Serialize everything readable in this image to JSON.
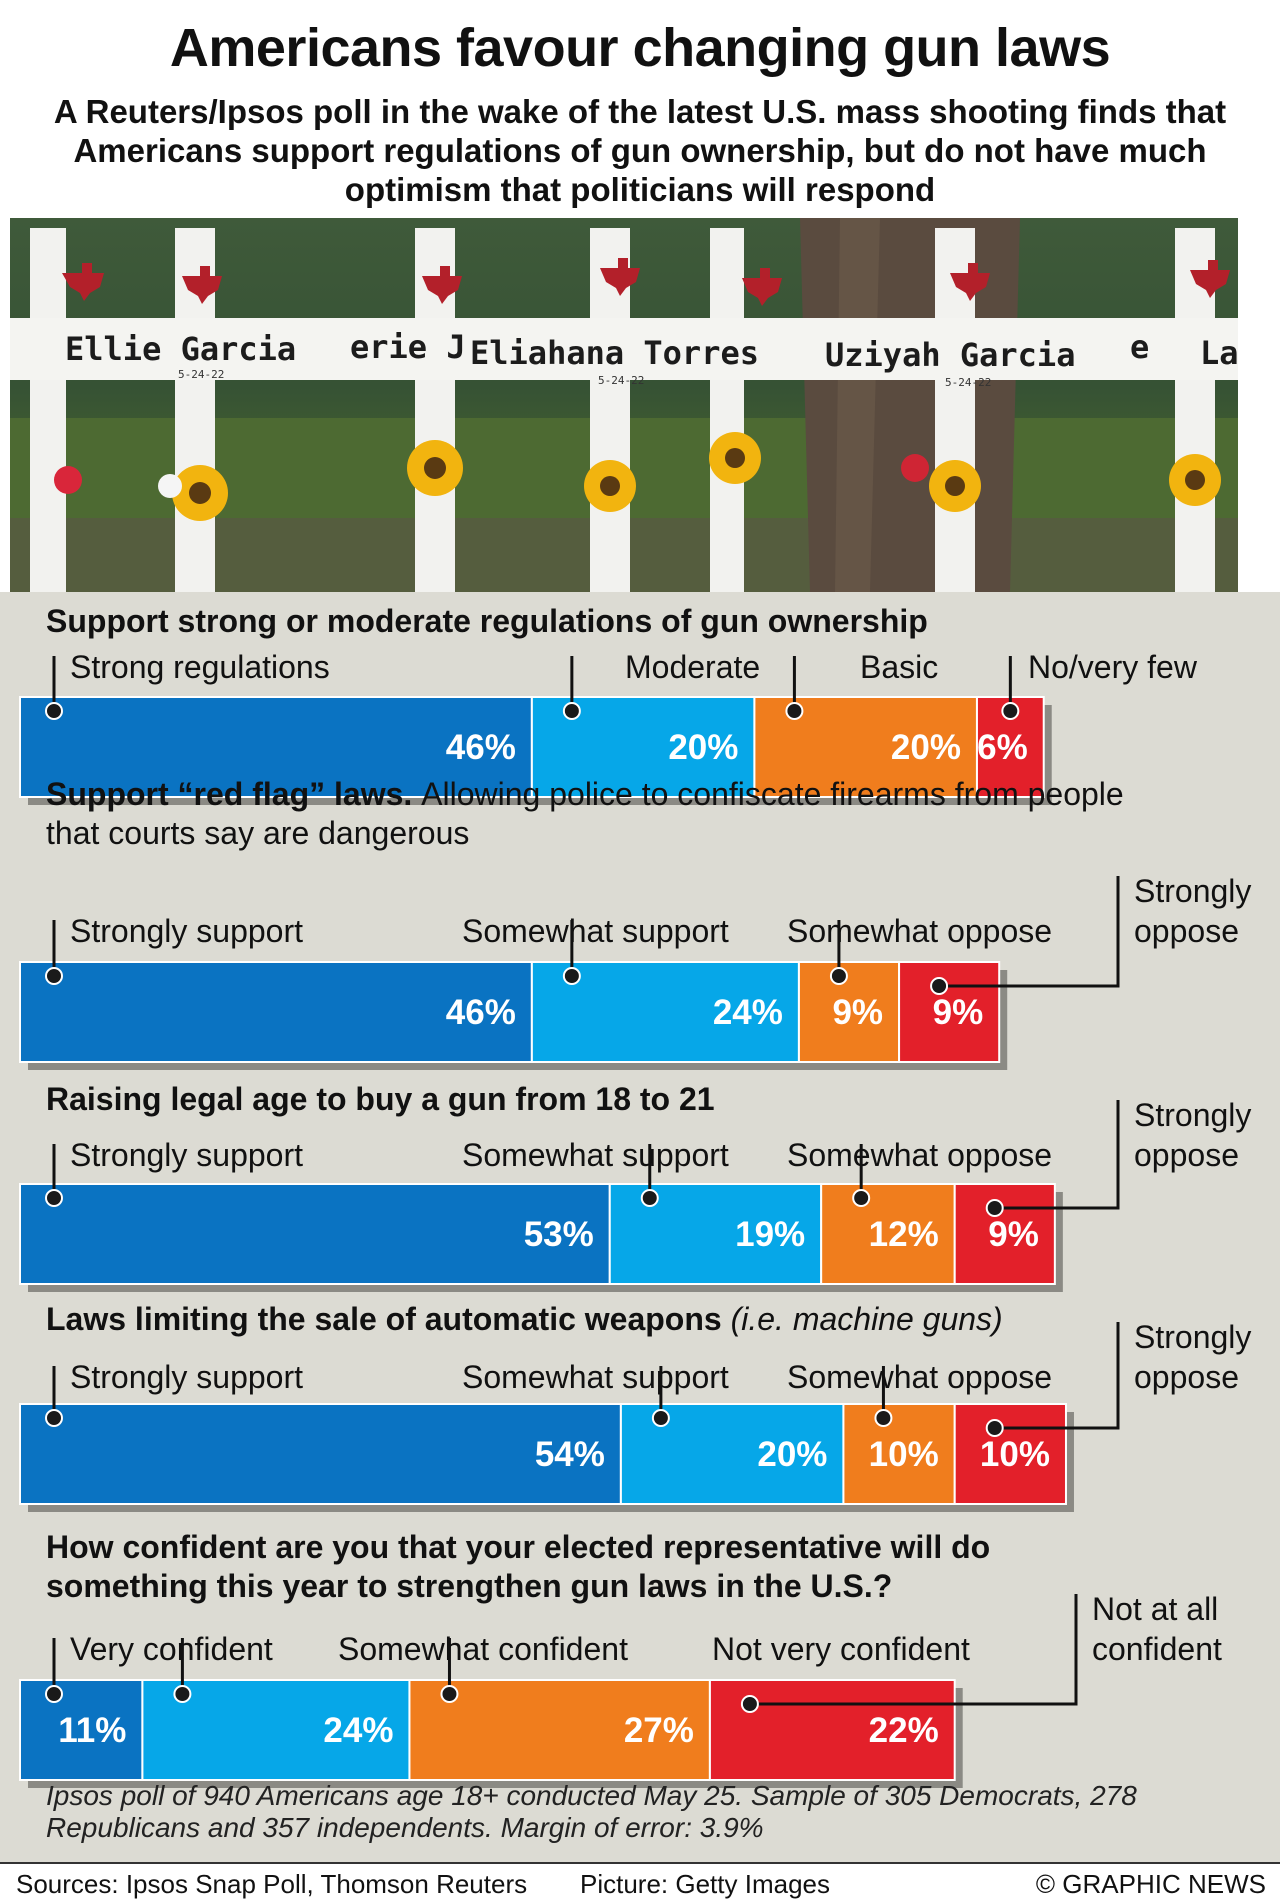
{
  "title": "Americans favour changing gun laws",
  "subtitle": "A Reuters/Ipsos poll in the wake of the latest U.S. mass shooting finds that Americans support regulations of gun ownership, but do not have much optimism that politicians will respond",
  "photo": {
    "names": [
      "Ellie Garcia",
      "erie J",
      "Eliahana Torres",
      "Uziyah Garcia",
      "e",
      "Lau"
    ],
    "date": "5-24-22"
  },
  "chart_data": [
    {
      "type": "bar",
      "stacked": true,
      "orientation": "horizontal",
      "title": "Support strong or moderate regulations of gun ownership",
      "title_extra": "",
      "title_extra_style": "",
      "categories": [
        "Strong regulations",
        "Moderate",
        "Basic",
        "No/very few"
      ],
      "values": [
        46,
        20,
        20,
        6
      ],
      "labels": [
        "46%",
        "20%",
        "20%",
        "6%"
      ],
      "colors": [
        "#0a73c2",
        "#06a7e8",
        "#f07d1d",
        "#e3202a"
      ]
    },
    {
      "type": "bar",
      "stacked": true,
      "orientation": "horizontal",
      "title": "Support “red flag” laws.",
      "title_extra": "Allowing police to confiscate firearms from people that courts say are dangerous",
      "title_extra_style": "plain",
      "categories": [
        "Strongly support",
        "Somewhat support",
        "Somewhat oppose",
        "Strongly oppose"
      ],
      "values": [
        46,
        24,
        9,
        9
      ],
      "labels": [
        "46%",
        "24%",
        "9%",
        "9%"
      ],
      "colors": [
        "#0a73c2",
        "#06a7e8",
        "#f07d1d",
        "#e3202a"
      ]
    },
    {
      "type": "bar",
      "stacked": true,
      "orientation": "horizontal",
      "title": "Raising legal age to buy a gun from 18 to 21",
      "title_extra": "",
      "title_extra_style": "",
      "categories": [
        "Strongly support",
        "Somewhat support",
        "Somewhat oppose",
        "Strongly oppose"
      ],
      "values": [
        53,
        19,
        12,
        9
      ],
      "labels": [
        "53%",
        "19%",
        "12%",
        "9%"
      ],
      "colors": [
        "#0a73c2",
        "#06a7e8",
        "#f07d1d",
        "#e3202a"
      ]
    },
    {
      "type": "bar",
      "stacked": true,
      "orientation": "horizontal",
      "title": "Laws limiting the sale of automatic weapons",
      "title_extra": "(i.e. machine guns)",
      "title_extra_style": "italic",
      "categories": [
        "Strongly support",
        "Somewhat support",
        "Somewhat oppose",
        "Strongly oppose"
      ],
      "values": [
        54,
        20,
        10,
        10
      ],
      "labels": [
        "54%",
        "20%",
        "10%",
        "10%"
      ],
      "colors": [
        "#0a73c2",
        "#06a7e8",
        "#f07d1d",
        "#e3202a"
      ]
    },
    {
      "type": "bar",
      "stacked": true,
      "orientation": "horizontal",
      "title": "How confident are you that your elected representative will do something this year to strengthen gun laws in the U.S.?",
      "title_extra": "",
      "title_extra_style": "",
      "categories": [
        "Very confident",
        "Somewhat confident",
        "Not very confident",
        "Not at all confident"
      ],
      "values": [
        11,
        24,
        27,
        22
      ],
      "labels": [
        "11%",
        "24%",
        "27%",
        "22%"
      ],
      "colors": [
        "#0a73c2",
        "#06a7e8",
        "#f07d1d",
        "#e3202a"
      ]
    }
  ],
  "footnote": "Ipsos poll of 940 Americans age 18+ conducted May 25. Sample of 305 Democrats, 278 Republicans and 357 independents. Margin of error: 3.9%",
  "footer": {
    "sources": "Sources: Ipsos Snap Poll, Thomson Reuters",
    "picture": "Picture: Getty Images",
    "credit": "© GRAPHIC NEWS"
  }
}
